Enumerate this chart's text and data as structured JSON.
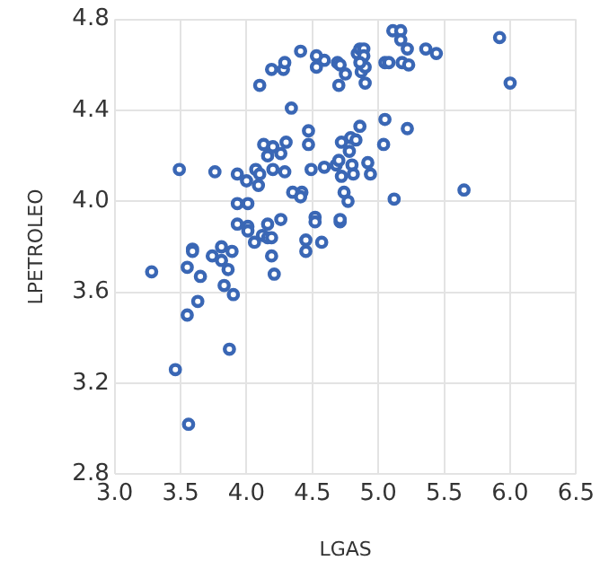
{
  "chart_data": {
    "type": "scatter",
    "xlabel": "LGAS",
    "ylabel": "LPETROLEO",
    "xlim": [
      3,
      6.5
    ],
    "ylim": [
      2.8,
      4.8
    ],
    "xticks": [
      {
        "value": 3,
        "label": "3.0"
      },
      3.5,
      {
        "value": 4,
        "label": "4.0"
      },
      4.5,
      {
        "value": 5,
        "label": "5.0"
      },
      5.5,
      {
        "value": 6,
        "label": "6.0"
      },
      6.5
    ],
    "yticks": [
      2.8,
      3.2,
      3.6,
      {
        "value": 4,
        "label": "4.0"
      },
      4.4,
      4.8
    ],
    "grid": true,
    "marker": "circle",
    "series": [
      {
        "color": "#3a67b5",
        "x": [
          5.11,
          5.17,
          5.17,
          5.22,
          5.36,
          5.44,
          5.92,
          6.0,
          5.05,
          5.08,
          5.18,
          5.23,
          4.59,
          4.69,
          4.71,
          4.75,
          4.7,
          4.9,
          4.84,
          4.86,
          4.89,
          4.89,
          4.87,
          4.9,
          4.86,
          4.86,
          5.05,
          5.22,
          5.04,
          4.72,
          4.79,
          4.83,
          4.78,
          4.59,
          4.68,
          4.7,
          4.8,
          4.92,
          4.72,
          4.81,
          4.94,
          4.74,
          4.77,
          5.12,
          5.65,
          4.71,
          4.41,
          4.53,
          4.53,
          4.19,
          4.28,
          4.29,
          4.1,
          4.34,
          4.47,
          4.47,
          4.13,
          4.2,
          4.26,
          4.16,
          3.49,
          3.76,
          3.93,
          4.0,
          4.07,
          4.1,
          4.2,
          4.29,
          4.49,
          4.09,
          4.35,
          4.42,
          4.41,
          3.93,
          4.01,
          4.26,
          4.52,
          4.52,
          3.93,
          4.01,
          4.16,
          4.01,
          4.06,
          4.12,
          4.16,
          4.19,
          4.71,
          4.45,
          4.57,
          4.45,
          4.19,
          4.21,
          3.59,
          3.59,
          3.81,
          3.74,
          3.81,
          3.89,
          3.86,
          3.55,
          3.65,
          3.28,
          3.83,
          3.9,
          3.63,
          3.55,
          3.87,
          3.46,
          3.56,
          4.3
        ],
        "values": [
          4.75,
          4.75,
          4.71,
          4.67,
          4.67,
          4.65,
          4.72,
          4.52,
          4.61,
          4.61,
          4.61,
          4.6,
          4.62,
          4.61,
          4.6,
          4.56,
          4.51,
          4.52,
          4.65,
          4.67,
          4.67,
          4.64,
          4.57,
          4.59,
          4.61,
          4.33,
          4.36,
          4.32,
          4.25,
          4.26,
          4.28,
          4.27,
          4.22,
          4.15,
          4.16,
          4.18,
          4.16,
          4.17,
          4.11,
          4.12,
          4.12,
          4.04,
          4.0,
          4.01,
          4.05,
          3.91,
          4.66,
          4.64,
          4.59,
          4.58,
          4.58,
          4.61,
          4.51,
          4.41,
          4.31,
          4.25,
          4.25,
          4.24,
          4.21,
          4.2,
          4.14,
          4.13,
          4.12,
          4.09,
          4.14,
          4.12,
          4.14,
          4.13,
          4.14,
          4.07,
          4.04,
          4.04,
          4.02,
          3.99,
          3.99,
          3.92,
          3.93,
          3.91,
          3.9,
          3.89,
          3.9,
          3.87,
          3.82,
          3.85,
          3.84,
          3.84,
          3.92,
          3.83,
          3.82,
          3.78,
          3.76,
          3.68,
          3.79,
          3.78,
          3.8,
          3.76,
          3.74,
          3.78,
          3.7,
          3.71,
          3.67,
          3.69,
          3.63,
          3.59,
          3.56,
          3.5,
          3.35,
          3.26,
          3.02,
          4.26
        ]
      }
    ]
  }
}
